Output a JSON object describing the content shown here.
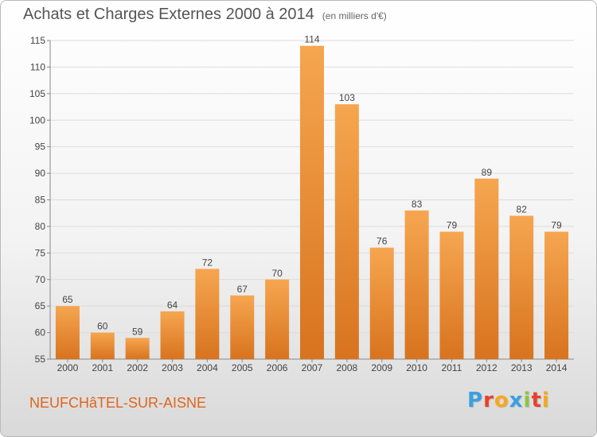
{
  "header": {
    "title": "Achats et Charges Externes 2000 à 2014",
    "subtitle": "(en milliers d'€)"
  },
  "footer": {
    "town": "NEUFCHâTEL-SUR-AISNE",
    "logo_text": "Proxiti",
    "logo_colors": [
      "#3aa0e0",
      "#e8412c",
      "#f7a81b",
      "#3aa0e0",
      "#8cc63e",
      "#e8412c",
      "#f7a81b"
    ]
  },
  "chart_data": {
    "type": "bar",
    "title": "Achats et Charges Externes 2000 à 2014",
    "xlabel": "",
    "ylabel": "",
    "categories": [
      "2000",
      "2001",
      "2002",
      "2003",
      "2004",
      "2005",
      "2006",
      "2007",
      "2008",
      "2009",
      "2010",
      "2011",
      "2012",
      "2013",
      "2014"
    ],
    "values": [
      65,
      60,
      59,
      64,
      72,
      67,
      70,
      114,
      103,
      76,
      83,
      79,
      89,
      82,
      79
    ],
    "ylim": [
      55,
      115
    ],
    "yticks": [
      55,
      60,
      65,
      70,
      75,
      80,
      85,
      90,
      95,
      100,
      105,
      110,
      115
    ],
    "grid": true,
    "bar_color_top": "#f6a650",
    "bar_color_bottom": "#d8731e"
  }
}
